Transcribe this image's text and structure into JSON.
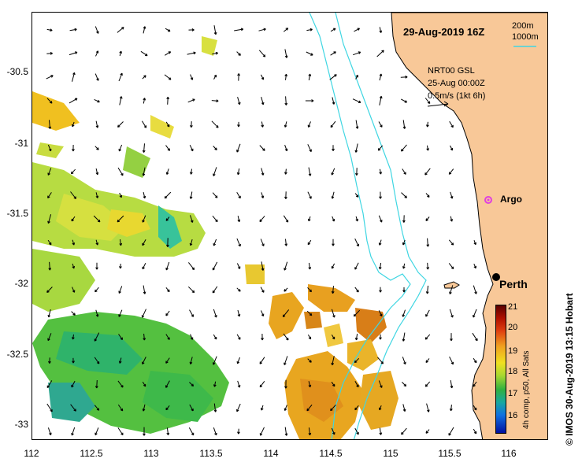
{
  "title": "29-Aug-2019 16Z",
  "scale": {
    "depth1": "200m",
    "depth2": "1000m"
  },
  "model": {
    "name": "NRT00 GSL",
    "date": "25-Aug 00:00Z",
    "speed": "0.5m/s (1kt 6h)"
  },
  "axes": {
    "y_ticks": [
      "-30.5",
      "-31",
      "-31.5",
      "-32",
      "-32.5",
      "-33"
    ],
    "x_ticks": [
      "112",
      "112.5",
      "113",
      "113.5",
      "114",
      "114.5",
      "115",
      "115.5",
      "116"
    ]
  },
  "places": {
    "argo": "Argo",
    "perth": "Perth"
  },
  "colorbar": {
    "ticks": [
      "21",
      "20",
      "19",
      "18",
      "17",
      "16"
    ],
    "caption": "4h comp, p50, All Sats"
  },
  "credit": "© IMOS 30-Aug-2019 13:15 Hobart",
  "colors": {
    "land": "#f8c898",
    "isobath": "#3fd6e2",
    "argo": "#e040e0"
  }
}
